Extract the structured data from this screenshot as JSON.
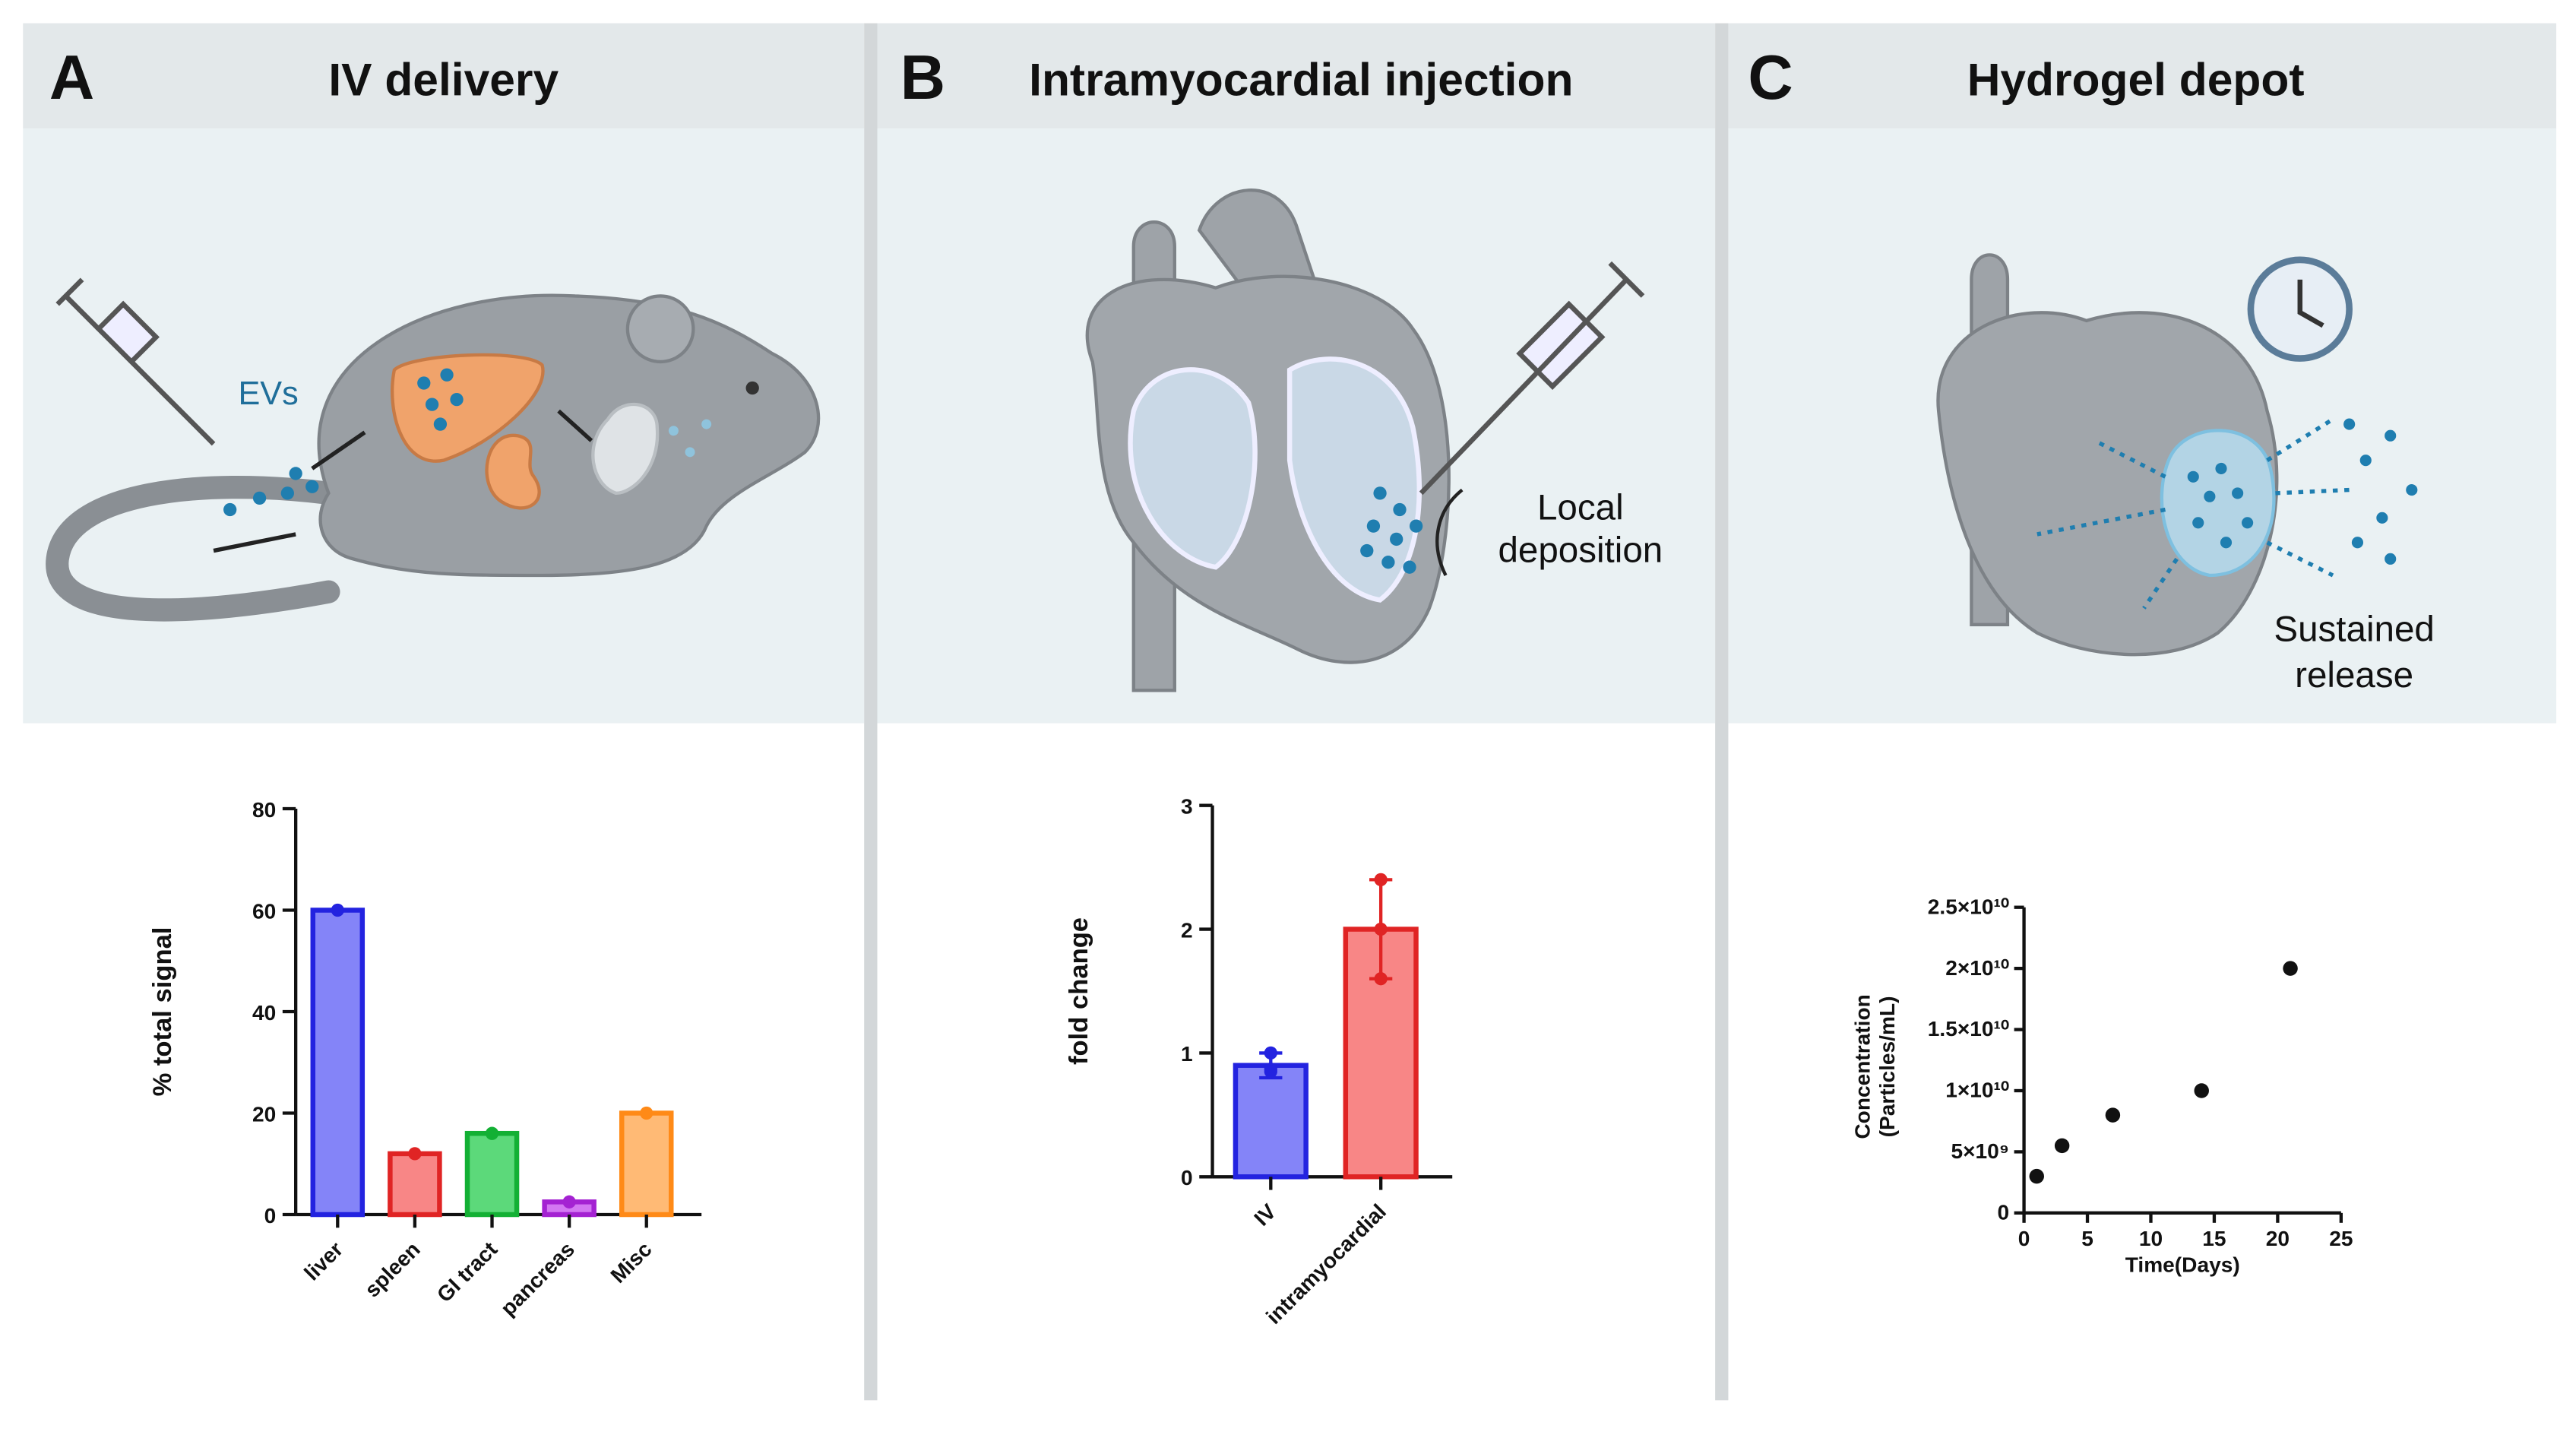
{
  "panels": [
    {
      "letter": "A",
      "title": "IV delivery",
      "labels": [
        "EVs"
      ]
    },
    {
      "letter": "B",
      "title": "Intramyocardial injection",
      "labels": [
        "Local",
        "deposition"
      ]
    },
    {
      "letter": "C",
      "title": "Hydrogel depot",
      "labels": [
        "Sustained",
        "release"
      ]
    }
  ],
  "chart_data": [
    {
      "type": "bar",
      "ylabel": "% total signal",
      "categories": [
        "liver",
        "spleen",
        "GI tract",
        "pancreas",
        "Misc"
      ],
      "values": [
        60,
        12,
        16,
        2.5,
        20
      ],
      "colors": [
        "#8484f8",
        "#f88686",
        "#5cd97a",
        "#d377f2",
        "#ffba75"
      ],
      "edgecolors": [
        "#2323e0",
        "#e02424",
        "#13b034",
        "#a422d2",
        "#ff8a17"
      ],
      "ylim": [
        0,
        80
      ],
      "yticks": [
        0,
        20,
        40,
        60,
        80
      ]
    },
    {
      "type": "bar",
      "ylabel": "fold change",
      "categories": [
        "IV",
        "intramyocardial"
      ],
      "values": [
        0.9,
        2.0
      ],
      "errors": [
        0.1,
        0.4
      ],
      "points": [
        [
          1.0,
          0.87,
          0.85
        ],
        [
          2.4,
          2.0,
          1.6
        ]
      ],
      "colors": [
        "#8484f8",
        "#f88686"
      ],
      "edgecolors": [
        "#2323e0",
        "#e02424"
      ],
      "ylim": [
        0,
        3
      ],
      "yticks": [
        0,
        1,
        2,
        3
      ]
    },
    {
      "type": "scatter",
      "xlabel": "Time(Days)",
      "ylabel": [
        "Concentration",
        "(Particles/mL)"
      ],
      "x": [
        1,
        3,
        7,
        14,
        21
      ],
      "values": [
        3000000000,
        5500000000,
        8000000000,
        10000000000,
        20000000000
      ],
      "color": "#111111",
      "xlim": [
        0,
        25
      ],
      "xticks": [
        0,
        5,
        10,
        15,
        20,
        25
      ],
      "ylim": [
        0,
        25000000000
      ],
      "yticks": [
        0,
        {
          "value": 5000000000,
          "label": "5×10⁹"
        },
        {
          "value": 10000000000,
          "label": "1×10¹⁰"
        },
        {
          "value": 15000000000,
          "label": "1.5×10¹⁰"
        },
        {
          "value": 20000000000,
          "label": "2×10¹⁰"
        },
        {
          "value": 25000000000,
          "label": "2.5×10¹⁰"
        }
      ]
    }
  ]
}
